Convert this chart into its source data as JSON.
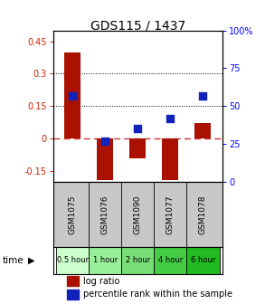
{
  "title": "GDS115 / 1437",
  "samples": [
    "GSM1075",
    "GSM1076",
    "GSM1090",
    "GSM1077",
    "GSM1078"
  ],
  "time_labels": [
    "0.5 hour",
    "1 hour",
    "2 hour",
    "4 hour",
    "6 hour"
  ],
  "time_colors": [
    "#ccffcc",
    "#99ee99",
    "#77dd77",
    "#44cc44",
    "#22bb22"
  ],
  "log_ratios": [
    0.4,
    -0.19,
    -0.09,
    -0.19,
    0.07
  ],
  "percentile_ranks": [
    57,
    27,
    35,
    42,
    57
  ],
  "bar_color": "#aa1100",
  "dot_color": "#1122bb",
  "ylim_left": [
    -0.2,
    0.5
  ],
  "ylim_right": [
    0,
    100
  ],
  "yticks_left": [
    -0.15,
    0,
    0.15,
    0.3,
    0.45
  ],
  "yticks_right": [
    0,
    25,
    50,
    75,
    100
  ],
  "hlines": [
    0.15,
    0.3
  ],
  "zero_line_color": "#cc3333",
  "background_color": "#ffffff",
  "plot_bg": "#ffffff",
  "sample_bg": "#c8c8c8",
  "legend_log_ratio": "log ratio",
  "legend_percentile": "percentile rank within the sample"
}
